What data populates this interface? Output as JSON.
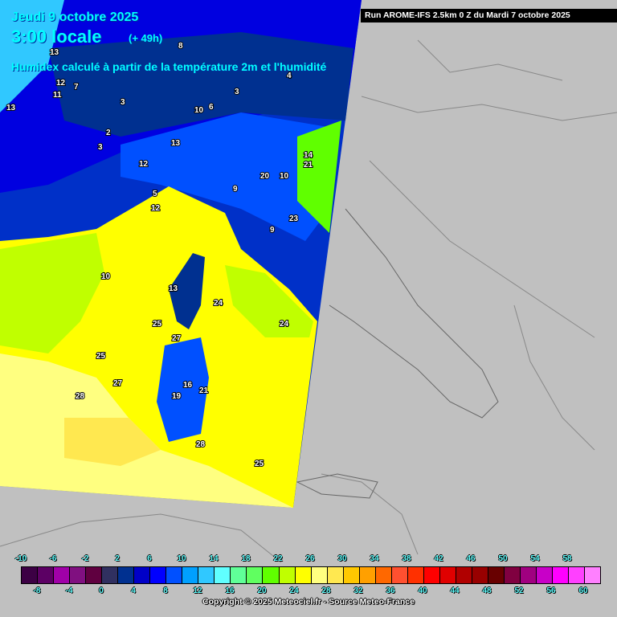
{
  "header": {
    "date": "Jeudi 9 octobre 2025",
    "time": "3:00 locale",
    "lead": "(+ 49h)",
    "description": "Humidex calculé à partir de la température 2m et l'humidité",
    "run": "Run AROME-IFS 2.5km 0 Z du Mardi 7 octobre 2025"
  },
  "map": {
    "labels": [
      "13",
      "8",
      "12",
      "11",
      "7",
      "13",
      "3",
      "10",
      "6",
      "3",
      "2",
      "3",
      "4",
      "13",
      "12",
      "14",
      "21",
      "20",
      "10",
      "9",
      "5",
      "12",
      "23",
      "9",
      "10",
      "24",
      "24",
      "25",
      "27",
      "27",
      "28",
      "25",
      "28",
      "25",
      "13",
      "16",
      "21",
      "19"
    ]
  },
  "legend": {
    "top_ticks": [
      "-10",
      "-6",
      "-2",
      "2",
      "6",
      "10",
      "14",
      "18",
      "22",
      "26",
      "30",
      "34",
      "38",
      "42",
      "46",
      "50",
      "54",
      "58"
    ],
    "bottom_ticks": [
      "-8",
      "-4",
      "0",
      "4",
      "8",
      "12",
      "16",
      "20",
      "24",
      "28",
      "32",
      "36",
      "40",
      "44",
      "48",
      "52",
      "56",
      "60"
    ],
    "colors": [
      "#3c0044",
      "#5c0064",
      "#a000a8",
      "#801080",
      "#600040",
      "#303060",
      "#003090",
      "#0000c8",
      "#0000ff",
      "#0050ff",
      "#00a0ff",
      "#30c8ff",
      "#60ffff",
      "#60ff98",
      "#60ff60",
      "#60ff00",
      "#c0ff00",
      "#ffff00",
      "#ffff80",
      "#ffe850",
      "#ffc800",
      "#ffa000",
      "#ff6800",
      "#ff5030",
      "#ff3000",
      "#ff0000",
      "#e00000",
      "#b00000",
      "#980000",
      "#680000",
      "#800040",
      "#a00080",
      "#c800c8",
      "#ff00ff",
      "#ff40ff",
      "#ff80ff"
    ]
  },
  "footer": {
    "copyright": "Copyright © 2025 Meteociel.fr - Source Meteo-France"
  }
}
